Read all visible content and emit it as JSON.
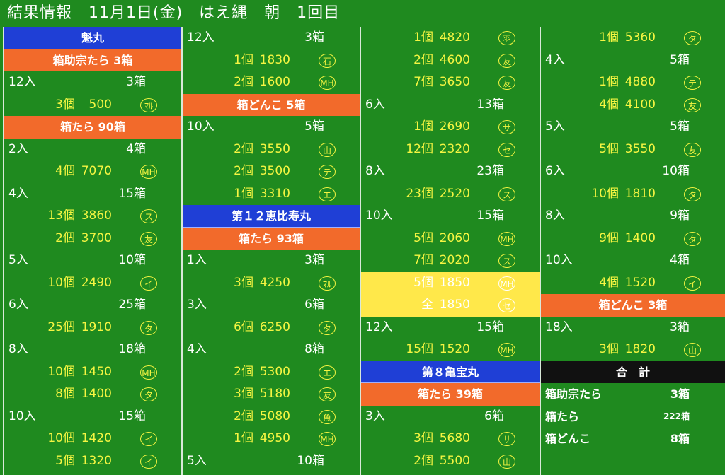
{
  "header": {
    "title": "結果情報　11月1日(金)　はえ縄　朝　1回目"
  },
  "columns": [
    {
      "rows": [
        {
          "kind": "ship",
          "text": "魁丸"
        },
        {
          "kind": "cat",
          "text": "箱助宗たら 3箱"
        },
        {
          "kind": "irisu",
          "left": "12入",
          "right": "3箱"
        },
        {
          "kind": "data",
          "qty": "3個",
          "price": "500",
          "buyer": "ﾏﾙ"
        },
        {
          "kind": "cat",
          "text": "箱たら 90箱"
        },
        {
          "kind": "irisu",
          "left": "2入",
          "right": "4箱"
        },
        {
          "kind": "data",
          "qty": "4個",
          "price": "7070",
          "buyer": "MH"
        },
        {
          "kind": "irisu",
          "left": "4入",
          "right": "15箱"
        },
        {
          "kind": "data",
          "qty": "13個",
          "price": "3860",
          "buyer": "ス"
        },
        {
          "kind": "data",
          "qty": "2個",
          "price": "3700",
          "buyer": "友"
        },
        {
          "kind": "irisu",
          "left": "5入",
          "right": "10箱"
        },
        {
          "kind": "data",
          "qty": "10個",
          "price": "2490",
          "buyer": "イ"
        },
        {
          "kind": "irisu",
          "left": "6入",
          "right": "25箱"
        },
        {
          "kind": "data",
          "qty": "25個",
          "price": "1910",
          "buyer": "タ"
        },
        {
          "kind": "irisu",
          "left": "8入",
          "right": "18箱"
        },
        {
          "kind": "data",
          "qty": "10個",
          "price": "1450",
          "buyer": "MH"
        },
        {
          "kind": "data",
          "qty": "8個",
          "price": "1400",
          "buyer": "タ"
        },
        {
          "kind": "irisu",
          "left": "10入",
          "right": "15箱"
        },
        {
          "kind": "data",
          "qty": "10個",
          "price": "1420",
          "buyer": "イ"
        },
        {
          "kind": "data",
          "qty": "5個",
          "price": "1320",
          "buyer": "イ"
        }
      ]
    },
    {
      "rows": [
        {
          "kind": "irisu",
          "left": "12入",
          "right": "3箱"
        },
        {
          "kind": "data",
          "qty": "1個",
          "price": "1830",
          "buyer": "石"
        },
        {
          "kind": "data",
          "qty": "2個",
          "price": "1600",
          "buyer": "MH"
        },
        {
          "kind": "cat",
          "text": "箱どんこ 5箱"
        },
        {
          "kind": "irisu",
          "left": "10入",
          "right": "5箱"
        },
        {
          "kind": "data",
          "qty": "2個",
          "price": "3550",
          "buyer": "山"
        },
        {
          "kind": "data",
          "qty": "2個",
          "price": "3500",
          "buyer": "テ"
        },
        {
          "kind": "data",
          "qty": "1個",
          "price": "3310",
          "buyer": "エ"
        },
        {
          "kind": "ship",
          "text": "第１２恵比寿丸"
        },
        {
          "kind": "cat",
          "text": "箱たら 93箱"
        },
        {
          "kind": "irisu",
          "left": "1入",
          "right": "3箱"
        },
        {
          "kind": "data",
          "qty": "3個",
          "price": "4250",
          "buyer": "ﾏﾙ"
        },
        {
          "kind": "irisu",
          "left": "3入",
          "right": "6箱"
        },
        {
          "kind": "data",
          "qty": "6個",
          "price": "6250",
          "buyer": "タ"
        },
        {
          "kind": "irisu",
          "left": "4入",
          "right": "8箱"
        },
        {
          "kind": "data",
          "qty": "2個",
          "price": "5300",
          "buyer": "エ"
        },
        {
          "kind": "data",
          "qty": "3個",
          "price": "5180",
          "buyer": "友"
        },
        {
          "kind": "data",
          "qty": "2個",
          "price": "5080",
          "buyer": "魚"
        },
        {
          "kind": "data",
          "qty": "1個",
          "price": "4950",
          "buyer": "MH"
        },
        {
          "kind": "irisu",
          "left": "5入",
          "right": "10箱"
        }
      ]
    },
    {
      "rows": [
        {
          "kind": "data",
          "qty": "1個",
          "price": "4820",
          "buyer": "羽"
        },
        {
          "kind": "data",
          "qty": "2個",
          "price": "4600",
          "buyer": "友"
        },
        {
          "kind": "data",
          "qty": "7個",
          "price": "3650",
          "buyer": "友"
        },
        {
          "kind": "irisu",
          "left": "6入",
          "right": "13箱"
        },
        {
          "kind": "data",
          "qty": "1個",
          "price": "2690",
          "buyer": "サ"
        },
        {
          "kind": "data",
          "qty": "12個",
          "price": "2320",
          "buyer": "セ"
        },
        {
          "kind": "irisu",
          "left": "8入",
          "right": "23箱"
        },
        {
          "kind": "data",
          "qty": "23個",
          "price": "2520",
          "buyer": "ス"
        },
        {
          "kind": "irisu",
          "left": "10入",
          "right": "15箱"
        },
        {
          "kind": "data",
          "qty": "5個",
          "price": "2060",
          "buyer": "MH"
        },
        {
          "kind": "data",
          "qty": "7個",
          "price": "2020",
          "buyer": "ス"
        },
        {
          "kind": "data",
          "qty": "5個",
          "price": "1850",
          "buyer": "MH",
          "highlight": true
        },
        {
          "kind": "data",
          "qty": "全",
          "price": "1850",
          "buyer": "セ",
          "highlight": true
        },
        {
          "kind": "irisu",
          "left": "12入",
          "right": "15箱"
        },
        {
          "kind": "data",
          "qty": "15個",
          "price": "1520",
          "buyer": "MH"
        },
        {
          "kind": "ship",
          "text": "第８亀宝丸"
        },
        {
          "kind": "cat",
          "text": "箱たら 39箱"
        },
        {
          "kind": "irisu",
          "left": "3入",
          "right": "6箱"
        },
        {
          "kind": "data",
          "qty": "3個",
          "price": "5680",
          "buyer": "サ"
        },
        {
          "kind": "data",
          "qty": "2個",
          "price": "5500",
          "buyer": "山"
        }
      ]
    },
    {
      "rows": [
        {
          "kind": "data",
          "qty": "1個",
          "price": "5360",
          "buyer": "タ"
        },
        {
          "kind": "irisu",
          "left": "4入",
          "right": "5箱"
        },
        {
          "kind": "data",
          "qty": "1個",
          "price": "4880",
          "buyer": "テ"
        },
        {
          "kind": "data",
          "qty": "4個",
          "price": "4100",
          "buyer": "友"
        },
        {
          "kind": "irisu",
          "left": "5入",
          "right": "5箱"
        },
        {
          "kind": "data",
          "qty": "5個",
          "price": "3550",
          "buyer": "友"
        },
        {
          "kind": "irisu",
          "left": "6入",
          "right": "10箱"
        },
        {
          "kind": "data",
          "qty": "10個",
          "price": "1810",
          "buyer": "タ"
        },
        {
          "kind": "irisu",
          "left": "8入",
          "right": "9箱"
        },
        {
          "kind": "data",
          "qty": "9個",
          "price": "1400",
          "buyer": "タ"
        },
        {
          "kind": "irisu",
          "left": "10入",
          "right": "4箱"
        },
        {
          "kind": "data",
          "qty": "4個",
          "price": "1520",
          "buyer": "イ"
        },
        {
          "kind": "cat",
          "text": "箱どんこ 3箱"
        },
        {
          "kind": "irisu",
          "left": "18入",
          "right": "3箱"
        },
        {
          "kind": "data",
          "qty": "3個",
          "price": "1820",
          "buyer": "山"
        },
        {
          "kind": "total",
          "text": "合　計"
        },
        {
          "kind": "sum",
          "left": "箱助宗たら",
          "right": "3箱"
        },
        {
          "kind": "sum",
          "left": "箱たら",
          "right": "222箱",
          "small": true
        },
        {
          "kind": "sum",
          "left": "箱どんこ",
          "right": "8箱"
        }
      ]
    }
  ]
}
